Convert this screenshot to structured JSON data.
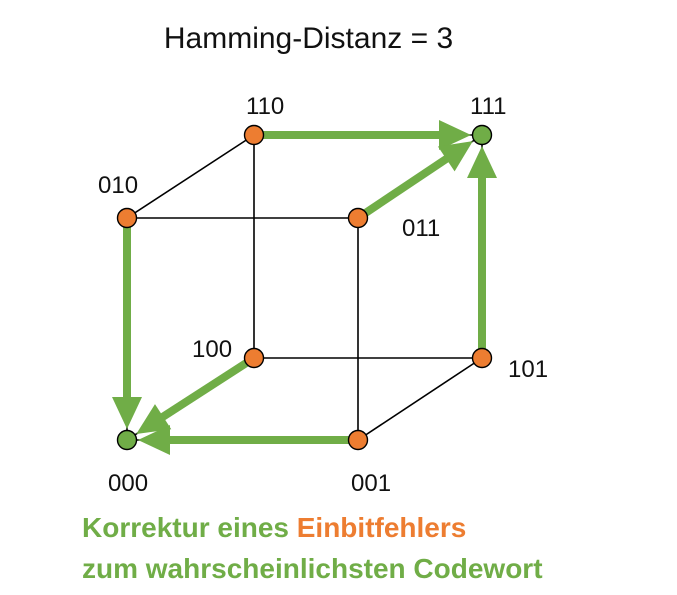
{
  "title": "Hamming-Distanz = 3",
  "colors": {
    "green": "#70AD47",
    "orange": "#ED7D31",
    "edge": "#000000"
  },
  "nodes": [
    {
      "id": "000",
      "label": "000",
      "type": "codeword"
    },
    {
      "id": "001",
      "label": "001",
      "type": "error"
    },
    {
      "id": "010",
      "label": "010",
      "type": "error"
    },
    {
      "id": "011",
      "label": "011",
      "type": "error"
    },
    {
      "id": "100",
      "label": "100",
      "type": "error"
    },
    {
      "id": "101",
      "label": "101",
      "type": "error"
    },
    {
      "id": "110",
      "label": "110",
      "type": "error"
    },
    {
      "id": "111",
      "label": "111",
      "type": "codeword"
    }
  ],
  "edges": [
    [
      "000",
      "001"
    ],
    [
      "000",
      "010"
    ],
    [
      "000",
      "100"
    ],
    [
      "001",
      "011"
    ],
    [
      "001",
      "101"
    ],
    [
      "010",
      "011"
    ],
    [
      "010",
      "110"
    ],
    [
      "100",
      "101"
    ],
    [
      "100",
      "110"
    ],
    [
      "011",
      "111"
    ],
    [
      "101",
      "111"
    ],
    [
      "110",
      "111"
    ]
  ],
  "correction_arrows": [
    {
      "from": "010",
      "to": "000"
    },
    {
      "from": "100",
      "to": "000"
    },
    {
      "from": "001",
      "to": "000"
    },
    {
      "from": "110",
      "to": "111"
    },
    {
      "from": "011",
      "to": "111"
    },
    {
      "from": "101",
      "to": "111"
    }
  ],
  "caption": {
    "line1_part1": "Korrektur eines ",
    "line1_part2": "Einbitfehlers",
    "line2": "zum wahrscheinlichsten Codewort"
  }
}
